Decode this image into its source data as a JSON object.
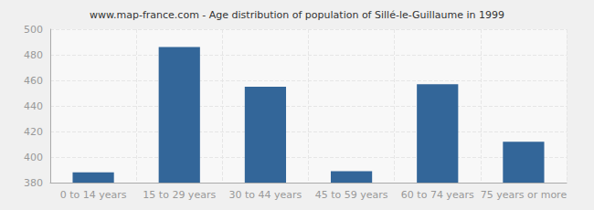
{
  "chart_data": {
    "type": "bar",
    "title": "www.map-france.com - Age distribution of population of Sillé-le-Guillaume in 1999",
    "categories": [
      "0 to 14 years",
      "15 to 29 years",
      "30 to 44 years",
      "45 to 59 years",
      "60 to 74 years",
      "75 years or more"
    ],
    "values": [
      388,
      486,
      455,
      389,
      457,
      412
    ],
    "color": "#336699",
    "ylim": [
      380,
      500
    ],
    "yticks": [
      380,
      400,
      420,
      440,
      460,
      480,
      500
    ],
    "grid": true
  }
}
